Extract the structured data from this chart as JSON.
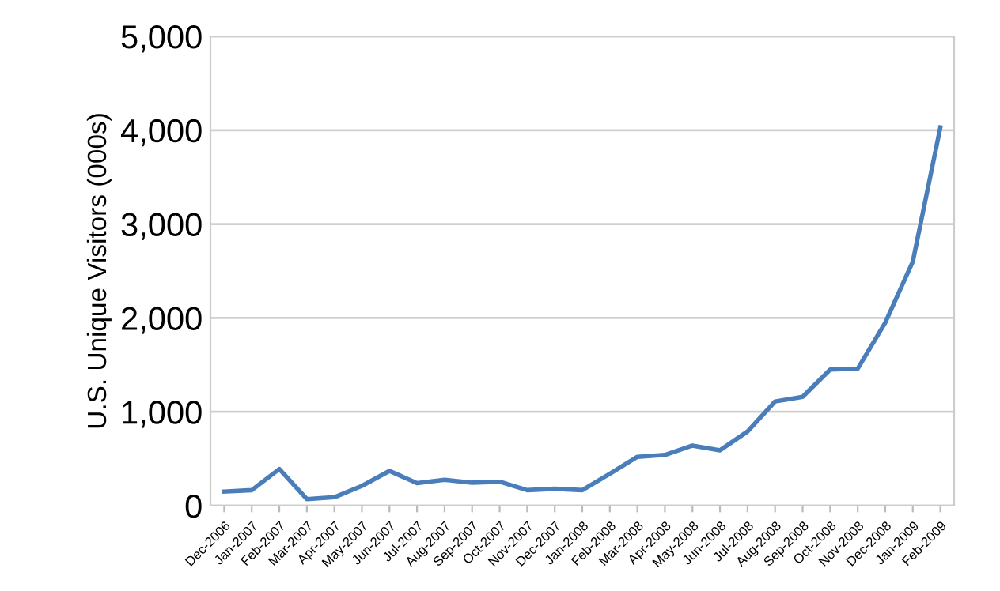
{
  "chart_data": {
    "type": "line",
    "ylabel": "U.S. Unique Visitors (000s)",
    "categories": [
      "Dec-2006",
      "Jan-2007",
      "Feb-2007",
      "Mar-2007",
      "Apr-2007",
      "May-2007",
      "Jun-2007",
      "Jul-2007",
      "Aug-2007",
      "Sep-2007",
      "Oct-2007",
      "Nov-2007",
      "Dec-2007",
      "Jan-2008",
      "Feb-2008",
      "Mar-2008",
      "Apr-2008",
      "May-2008",
      "Jun-2008",
      "Jul-2008",
      "Aug-2008",
      "Sep-2008",
      "Oct-2008",
      "Nov-2008",
      "Dec-2008",
      "Jan-2009",
      "Feb-2009"
    ],
    "series": [
      {
        "color": "#4a7ebb",
        "values": [
          150,
          165,
          390,
          70,
          90,
          210,
          370,
          240,
          275,
          245,
          255,
          165,
          180,
          165,
          340,
          520,
          540,
          640,
          590,
          790,
          1110,
          1160,
          1450,
          1460,
          1950,
          2600,
          4030
        ]
      }
    ],
    "ylim": [
      0,
      5000
    ],
    "yticks": [
      {
        "value": 0,
        "label": "0"
      },
      {
        "value": 1000,
        "label": "1,000"
      },
      {
        "value": 2000,
        "label": "2,000"
      },
      {
        "value": 3000,
        "label": "3,000"
      },
      {
        "value": 4000,
        "label": "4,000"
      },
      {
        "value": 5000,
        "label": "5,000"
      }
    ],
    "grid": "y",
    "legend": false,
    "marker": "none",
    "line_style": "solid"
  }
}
